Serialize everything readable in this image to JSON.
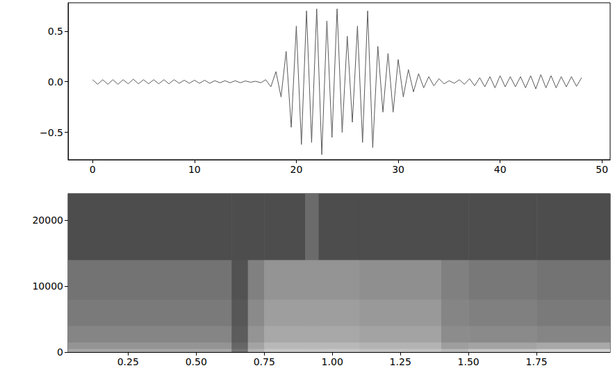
{
  "chart_data": [
    {
      "type": "line",
      "color": "#595959",
      "grid": false,
      "xlim": [
        -2.4,
        50.8
      ],
      "xticks": [
        0,
        10,
        20,
        30,
        40,
        50
      ],
      "ylim": [
        -0.77,
        0.78
      ],
      "yticks": [
        {
          "value": -0.5,
          "label": "−0.5"
        },
        {
          "value": 0,
          "label": "0.0"
        },
        0.5
      ],
      "x": [
        0,
        0.5,
        1,
        1.5,
        2,
        2.5,
        3,
        3.5,
        4,
        4.5,
        5,
        5.5,
        6,
        6.5,
        7,
        7.5,
        8,
        8.5,
        9,
        9.5,
        10,
        10.5,
        11,
        11.5,
        12,
        12.5,
        13,
        13.5,
        14,
        14.5,
        15,
        15.5,
        16,
        16.5,
        17,
        17.5,
        18,
        18.5,
        19,
        19.5,
        20,
        20.5,
        21,
        21.5,
        22,
        22.5,
        23,
        23.5,
        24,
        24.5,
        25,
        25.5,
        26,
        26.5,
        27,
        27.5,
        28,
        28.5,
        29,
        29.5,
        30,
        30.5,
        31,
        31.5,
        32,
        32.5,
        33,
        33.5,
        34,
        34.5,
        35,
        35.5,
        36,
        36.5,
        37,
        37.5,
        38,
        38.5,
        39,
        39.5,
        40,
        40.5,
        41,
        41.5,
        42,
        42.5,
        43,
        43.5,
        44,
        44.5,
        45,
        45.5,
        46,
        46.5,
        47,
        47.5,
        48
      ],
      "values": [
        0.02,
        -0.025,
        0.02,
        -0.025,
        0.02,
        -0.025,
        0.02,
        -0.02,
        0.025,
        -0.02,
        0.02,
        -0.02,
        0.02,
        -0.02,
        0.02,
        -0.02,
        0.02,
        -0.015,
        0.015,
        -0.015,
        0.015,
        -0.015,
        0.015,
        -0.015,
        0.01,
        -0.01,
        0.01,
        -0.01,
        0.01,
        -0.01,
        0.008,
        -0.005,
        0.005,
        -0.01,
        0.02,
        -0.05,
        0.1,
        -0.15,
        0.3,
        -0.45,
        0.55,
        -0.62,
        0.7,
        -0.6,
        0.72,
        -0.72,
        0.6,
        -0.55,
        0.72,
        -0.5,
        0.45,
        -0.4,
        0.55,
        -0.6,
        0.7,
        -0.65,
        0.35,
        -0.3,
        0.28,
        -0.3,
        0.22,
        -0.15,
        0.12,
        -0.1,
        0.08,
        -0.06,
        0.05,
        -0.04,
        0.03,
        -0.02,
        0.01,
        -0.015,
        0.02,
        -0.025,
        0.03,
        -0.04,
        0.04,
        -0.05,
        0.05,
        -0.06,
        0.06,
        -0.05,
        0.05,
        -0.05,
        0.05,
        -0.06,
        0.06,
        -0.07,
        0.07,
        -0.06,
        0.06,
        -0.06,
        0.05,
        -0.05,
        0.05,
        -0.045,
        0.04
      ]
    },
    {
      "type": "heatmap",
      "grid": false,
      "xlim": [
        0.03,
        2.02
      ],
      "xticks": [
        0.25,
        {
          "value": 0.5,
          "label": "0.50"
        },
        0.75,
        {
          "value": 1,
          "label": "1.00"
        },
        1.25,
        {
          "value": 1.5,
          "label": "1.50"
        },
        1.75
      ],
      "ylim": [
        0,
        24000
      ],
      "yticks": [
        0,
        10000,
        20000
      ],
      "vlim": [
        0,
        100
      ],
      "x_edges": [
        0.03,
        0.63,
        0.69,
        0.75,
        0.9,
        0.95,
        1.1,
        1.4,
        1.5,
        1.75,
        2.02
      ],
      "y_edges": [
        0,
        500,
        1500,
        4000,
        8000,
        14000,
        24000
      ],
      "values": [
        [
          65,
          45,
          70,
          78,
          78,
          78,
          76,
          72,
          78,
          82
        ],
        [
          58,
          40,
          64,
          72,
          72,
          72,
          70,
          62,
          64,
          66
        ],
        [
          52,
          36,
          58,
          66,
          66,
          66,
          64,
          55,
          54,
          52
        ],
        [
          48,
          34,
          54,
          62,
          62,
          62,
          60,
          52,
          50,
          48
        ],
        [
          45,
          32,
          50,
          58,
          58,
          58,
          56,
          50,
          47,
          45
        ],
        [
          30,
          30,
          30,
          30,
          42,
          30,
          30,
          30,
          30,
          30
        ]
      ]
    }
  ]
}
